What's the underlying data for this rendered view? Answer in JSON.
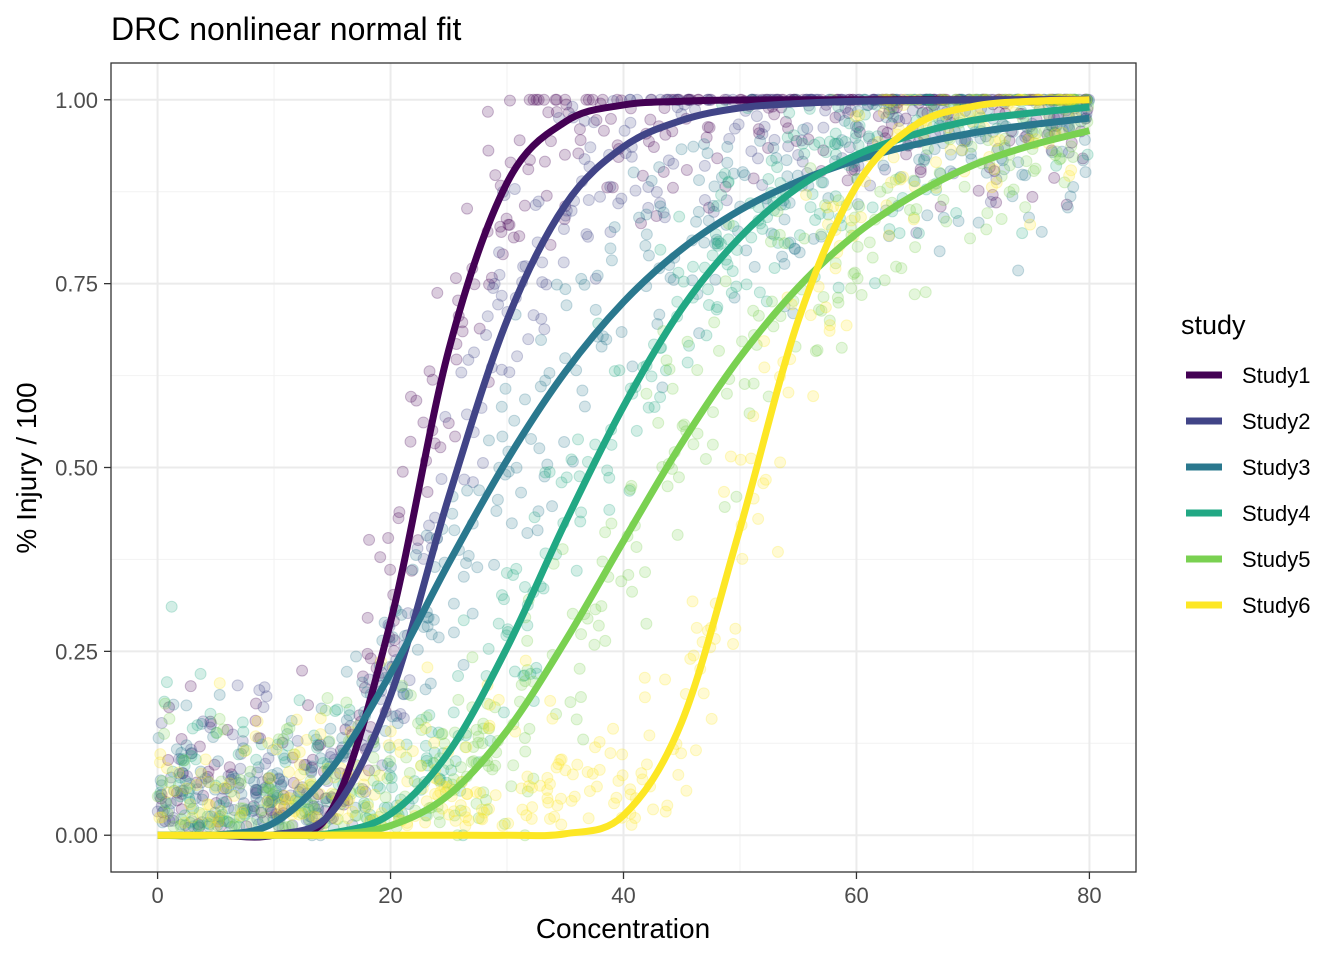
{
  "chart_data": {
    "type": "line",
    "title": "DRC nonlinear normal fit",
    "xlabel": "Concentration",
    "ylabel": "% Injury / 100",
    "xlim": [
      -4,
      84
    ],
    "ylim": [
      -0.05,
      1.05
    ],
    "x_ticks": [
      0,
      20,
      40,
      60,
      80
    ],
    "x_tick_labels": [
      "0",
      "20",
      "40",
      "60",
      "80"
    ],
    "y_ticks": [
      0,
      0.25,
      0.5,
      0.75,
      1
    ],
    "y_tick_labels": [
      "0.00",
      "0.25",
      "0.50",
      "0.75",
      "1.00"
    ],
    "grid": true,
    "legend": {
      "title": "study",
      "placement": "right"
    },
    "x": [
      0,
      5,
      10,
      15,
      20,
      25,
      30,
      35,
      40,
      45,
      50,
      55,
      60,
      65,
      70,
      75,
      80
    ],
    "series": [
      {
        "name": "Study1",
        "color": "#440154",
        "values": [
          0,
          0,
          0.0002,
          0.036,
          0.29,
          0.66,
          0.887,
          0.97,
          0.993,
          0.998,
          0.9997,
          1,
          1,
          1,
          1,
          1,
          1
        ]
      },
      {
        "name": "Study2",
        "color": "#414487",
        "values": [
          0,
          0,
          0.0006,
          0.032,
          0.19,
          0.46,
          0.7,
          0.857,
          0.936,
          0.972,
          0.989,
          0.995,
          0.998,
          0.999,
          0.9997,
          1,
          1
        ]
      },
      {
        "name": "Study3",
        "color": "#2A788E",
        "values": [
          0,
          0.0003,
          0.017,
          0.092,
          0.22,
          0.37,
          0.51,
          0.63,
          0.725,
          0.797,
          0.85,
          0.889,
          0.918,
          0.939,
          0.955,
          0.966,
          0.975
        ]
      },
      {
        "name": "Study4",
        "color": "#22A884",
        "values": [
          0,
          0,
          0,
          0.003,
          0.029,
          0.113,
          0.255,
          0.425,
          0.583,
          0.716,
          0.813,
          0.881,
          0.925,
          0.953,
          0.972,
          0.982,
          0.99
        ]
      },
      {
        "name": "Study5",
        "color": "#7AD151",
        "values": [
          0,
          0,
          0,
          0.001,
          0.013,
          0.055,
          0.142,
          0.264,
          0.4,
          0.533,
          0.65,
          0.745,
          0.818,
          0.871,
          0.911,
          0.938,
          0.958
        ]
      },
      {
        "name": "Study6",
        "color": "#FDE725",
        "values": [
          0,
          0,
          0,
          0,
          0,
          0,
          0,
          0.002,
          0.027,
          0.154,
          0.417,
          0.7,
          0.883,
          0.965,
          0.991,
          0.998,
          1
        ]
      }
    ],
    "scatter": {
      "shown": true,
      "opacity": 0.2
    }
  }
}
